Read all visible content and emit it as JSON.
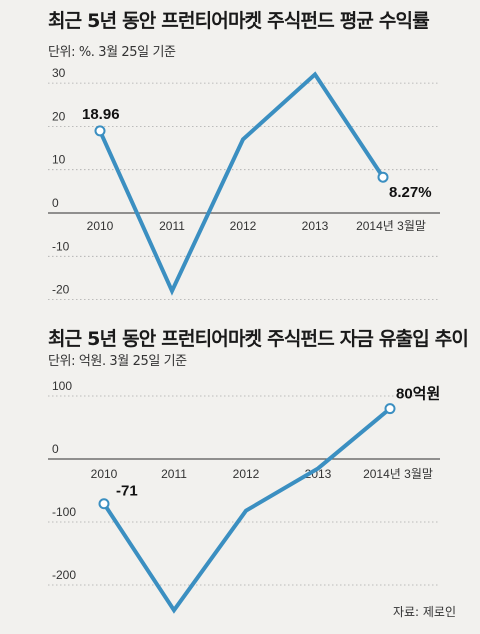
{
  "charts": [
    {
      "title": "최근 5년 동안 프런티어마켓 주식펀드 평균 수익률",
      "subtitle": "단위: %. 3월 25일 기준",
      "yticks": [
        "30",
        "20",
        "10",
        "0",
        "-10",
        "-20"
      ]
    },
    {
      "title": "최근 5년 동안 프런티어마켓 주식펀드 자금 유출입 추이",
      "subtitle": "단위: 억원. 3월 25일 기준",
      "yticks": [
        "100",
        "0",
        "-100",
        "-200"
      ]
    }
  ],
  "source": "자료: 제로인",
  "colors": {
    "line": "#3b8fc1",
    "grid": "#aaaaaa",
    "background": "#f2f1ee"
  },
  "chart_data": [
    {
      "type": "line",
      "title": "최근 5년 동안 프런티어마켓 주식펀드 평균 수익률",
      "categories": [
        "2010",
        "2011",
        "2012",
        "2013",
        "2014년 3월말"
      ],
      "series": [
        {
          "values": [
            18.96,
            -18,
            17,
            32,
            8.27
          ]
        }
      ],
      "yticks": [
        30,
        20,
        10,
        0,
        -10,
        -20
      ],
      "ylim": [
        -20,
        30
      ],
      "point_labels": [
        {
          "index": 0,
          "text": "18.96"
        },
        {
          "index": 4,
          "text": "8.27%"
        }
      ],
      "grid": true
    },
    {
      "type": "line",
      "title": "최근 5년 동안 프런티어마켓 주식펀드 자금 유출입 추이",
      "categories": [
        "2010",
        "2011",
        "2012",
        "2013",
        "2014년 3월말"
      ],
      "series": [
        {
          "values": [
            -71,
            -240,
            -82,
            -15,
            80
          ]
        }
      ],
      "yticks": [
        100,
        0,
        -100,
        -200
      ],
      "ylim": [
        -240,
        100
      ],
      "point_labels": [
        {
          "index": 0,
          "text": "-71"
        },
        {
          "index": 4,
          "text": "80억원"
        }
      ],
      "grid": true
    }
  ]
}
